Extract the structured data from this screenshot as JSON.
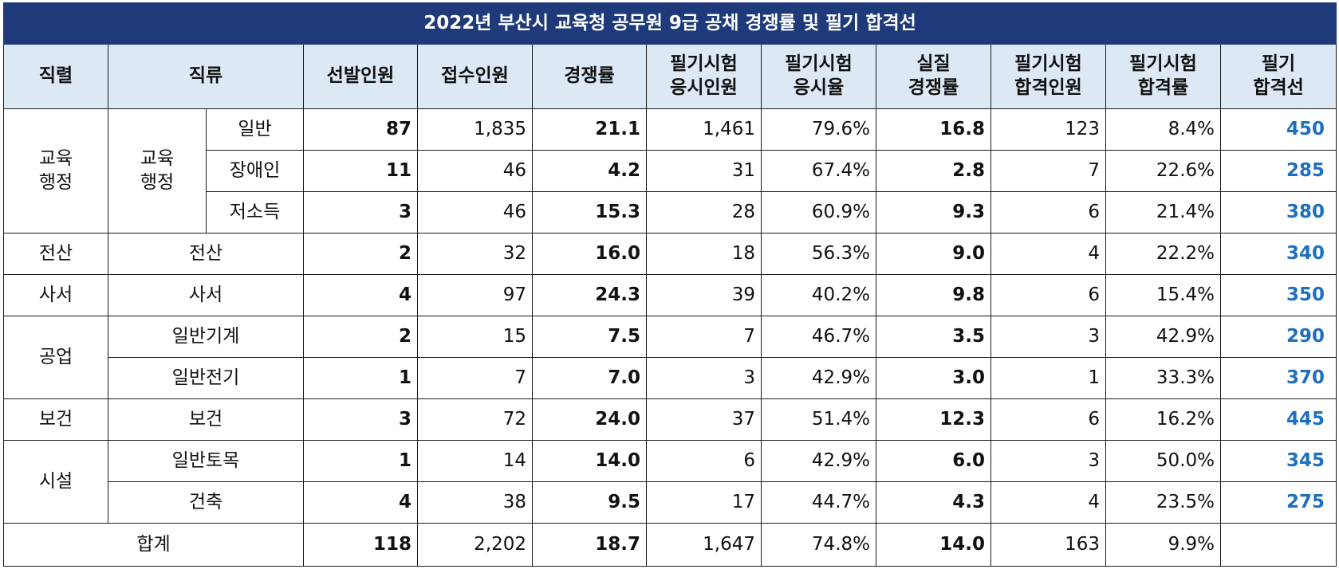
{
  "title": "2022년 부산시 교육청 공무원 9급 공채 경쟁률 및 필기 합격선",
  "headers": {
    "series": "직렬",
    "category": "직류",
    "selected": "선발인원",
    "applied": "접수인원",
    "competition": "경쟁률",
    "exam_takers": [
      "필기시험",
      "응시인원"
    ],
    "exam_rate": [
      "필기시험",
      "응시율"
    ],
    "actual_competition": [
      "실질",
      "경쟁률"
    ],
    "passed": [
      "필기시험",
      "합격인원"
    ],
    "pass_rate": [
      "필기시험",
      "합격률"
    ],
    "cutoff": [
      "필기",
      "합격선"
    ]
  },
  "groups": {
    "edu_admin": {
      "series": [
        "교육",
        "행정"
      ],
      "category": [
        "교육",
        "행정"
      ]
    },
    "computing": "전산",
    "librarian": "사서",
    "industrial": "공업",
    "health": "보건",
    "facility": "시설"
  },
  "rows": [
    {
      "sub": "일반",
      "selected": "87",
      "applied": "1,835",
      "competition": "21.1",
      "takers": "1,461",
      "take_rate": "79.6%",
      "actual": "16.8",
      "passed": "123",
      "pass_rate": "8.4%",
      "cutoff": "450"
    },
    {
      "sub": "장애인",
      "selected": "11",
      "applied": "46",
      "competition": "4.2",
      "takers": "31",
      "take_rate": "67.4%",
      "actual": "2.8",
      "passed": "7",
      "pass_rate": "22.6%",
      "cutoff": "285"
    },
    {
      "sub": "저소득",
      "selected": "3",
      "applied": "46",
      "competition": "15.3",
      "takers": "28",
      "take_rate": "60.9%",
      "actual": "9.3",
      "passed": "6",
      "pass_rate": "21.4%",
      "cutoff": "380"
    },
    {
      "sub": "전산",
      "selected": "2",
      "applied": "32",
      "competition": "16.0",
      "takers": "18",
      "take_rate": "56.3%",
      "actual": "9.0",
      "passed": "4",
      "pass_rate": "22.2%",
      "cutoff": "340"
    },
    {
      "sub": "사서",
      "selected": "4",
      "applied": "97",
      "competition": "24.3",
      "takers": "39",
      "take_rate": "40.2%",
      "actual": "9.8",
      "passed": "6",
      "pass_rate": "15.4%",
      "cutoff": "350"
    },
    {
      "sub": "일반기계",
      "selected": "2",
      "applied": "15",
      "competition": "7.5",
      "takers": "7",
      "take_rate": "46.7%",
      "actual": "3.5",
      "passed": "3",
      "pass_rate": "42.9%",
      "cutoff": "290"
    },
    {
      "sub": "일반전기",
      "selected": "1",
      "applied": "7",
      "competition": "7.0",
      "takers": "3",
      "take_rate": "42.9%",
      "actual": "3.0",
      "passed": "1",
      "pass_rate": "33.3%",
      "cutoff": "370"
    },
    {
      "sub": "보건",
      "selected": "3",
      "applied": "72",
      "competition": "24.0",
      "takers": "37",
      "take_rate": "51.4%",
      "actual": "12.3",
      "passed": "6",
      "pass_rate": "16.2%",
      "cutoff": "445"
    },
    {
      "sub": "일반토목",
      "selected": "1",
      "applied": "14",
      "competition": "14.0",
      "takers": "6",
      "take_rate": "42.9%",
      "actual": "6.0",
      "passed": "3",
      "pass_rate": "50.0%",
      "cutoff": "345"
    },
    {
      "sub": "건축",
      "selected": "4",
      "applied": "38",
      "competition": "9.5",
      "takers": "17",
      "take_rate": "44.7%",
      "actual": "4.3",
      "passed": "4",
      "pass_rate": "23.5%",
      "cutoff": "275"
    }
  ],
  "total": {
    "label": "합계",
    "selected": "118",
    "applied": "2,202",
    "competition": "18.7",
    "takers": "1,647",
    "take_rate": "74.8%",
    "actual": "14.0",
    "passed": "163",
    "pass_rate": "9.9%",
    "cutoff": ""
  },
  "colors": {
    "title_bg": "#1f3a7a",
    "header_bg": "#dce9f5",
    "cutoff_text": "#1f6fbf"
  }
}
